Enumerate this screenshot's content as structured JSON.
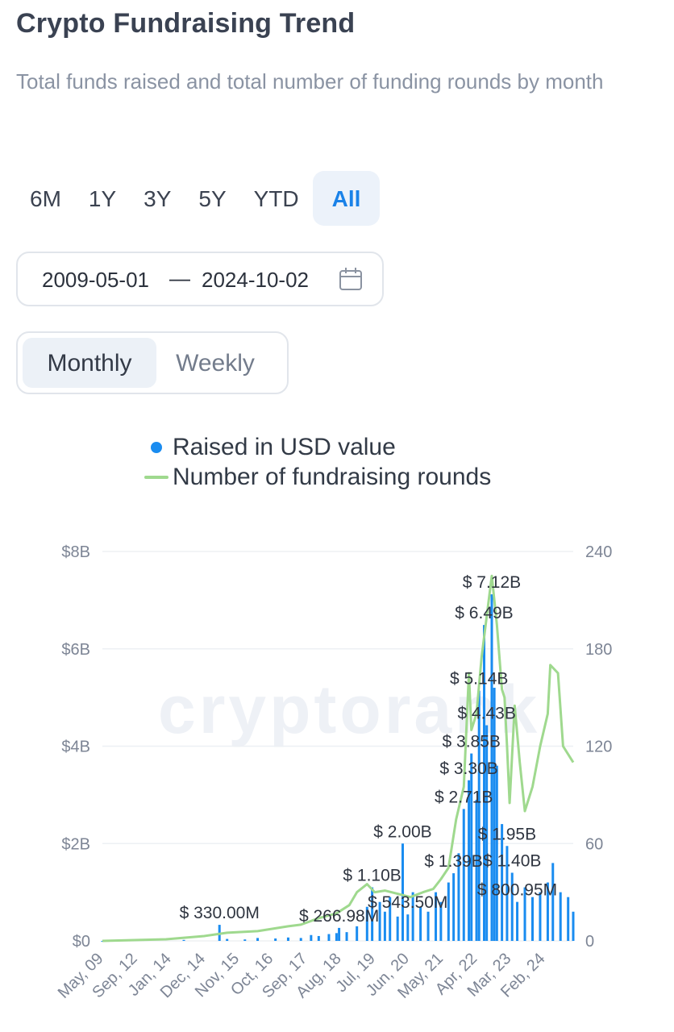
{
  "header": {
    "title": "Crypto Fundraising Trend",
    "subtitle": "Total funds raised and total number of funding rounds by month"
  },
  "range_buttons": [
    {
      "label": "6M",
      "active": false
    },
    {
      "label": "1Y",
      "active": false
    },
    {
      "label": "3Y",
      "active": false
    },
    {
      "label": "5Y",
      "active": false
    },
    {
      "label": "YTD",
      "active": false
    },
    {
      "label": "All",
      "active": true
    }
  ],
  "date_range": {
    "start": "2009-05-01",
    "separator": "—",
    "end": "2024-10-02",
    "icon": "calendar-icon"
  },
  "frequency": {
    "monthly": "Monthly",
    "weekly": "Weekly",
    "selected": "Monthly"
  },
  "watermark": "cryptorank",
  "colors": {
    "accent": "#1a82e8",
    "bars": "#1a8cf0",
    "line": "#9fd98e",
    "grid": "#edf0f4",
    "axis_text": "#7d8595"
  },
  "chart_data": {
    "type": "bar",
    "legend": [
      "Raised in USD value",
      "Number of fundraising rounds"
    ],
    "x_range": [
      "2009-05",
      "2024-10"
    ],
    "x_tick_labels": [
      "May, 09",
      "Sep, 12",
      "Jan, 14",
      "Dec, 14",
      "Nov, 15",
      "Oct, 16",
      "Sep, 17",
      "Aug, 18",
      "Jul, 19",
      "Jun, 20",
      "May, 21",
      "Apr, 22",
      "Mar, 23",
      "Feb, 24"
    ],
    "y_left": {
      "ticks": [
        "$0",
        "$2B",
        "$4B",
        "$6B",
        "$8B"
      ],
      "range": [
        0,
        8000000000
      ]
    },
    "y_right": {
      "ticks": [
        "0",
        "60",
        "120",
        "180",
        "240"
      ],
      "range": [
        0,
        240
      ]
    },
    "series": [
      {
        "name": "Raised in USD value",
        "kind": "bar",
        "points": [
          [
            "2009-05",
            0
          ],
          [
            "2012-01",
            20000000
          ],
          [
            "2013-03",
            330000000
          ],
          [
            "2013-06",
            40000000
          ],
          [
            "2014-01",
            30000000
          ],
          [
            "2014-06",
            60000000
          ],
          [
            "2015-01",
            50000000
          ],
          [
            "2015-06",
            70000000
          ],
          [
            "2015-11",
            60000000
          ],
          [
            "2016-03",
            120000000
          ],
          [
            "2016-06",
            100000000
          ],
          [
            "2016-10",
            140000000
          ],
          [
            "2017-01",
            160000000
          ],
          [
            "2017-02",
            266980000
          ],
          [
            "2017-05",
            180000000
          ],
          [
            "2017-09",
            300000000
          ],
          [
            "2018-01",
            700000000
          ],
          [
            "2018-03",
            1100000000
          ],
          [
            "2018-06",
            800000000
          ],
          [
            "2018-08",
            600000000
          ],
          [
            "2018-10",
            900000000
          ],
          [
            "2019-01",
            500000000
          ],
          [
            "2019-03",
            2000000000
          ],
          [
            "2019-05",
            543500000
          ],
          [
            "2019-07",
            1000000000
          ],
          [
            "2019-10",
            700000000
          ],
          [
            "2020-01",
            600000000
          ],
          [
            "2020-04",
            1000000000
          ],
          [
            "2020-06",
            800000000
          ],
          [
            "2020-09",
            1200000000
          ],
          [
            "2020-11",
            1390000000
          ],
          [
            "2021-01",
            1800000000
          ],
          [
            "2021-03",
            2710000000
          ],
          [
            "2021-05",
            3300000000
          ],
          [
            "2021-06",
            3850000000
          ],
          [
            "2021-08",
            2900000000
          ],
          [
            "2021-09",
            5140000000
          ],
          [
            "2021-11",
            6490000000
          ],
          [
            "2021-12",
            4430000000
          ],
          [
            "2022-02",
            7120000000
          ],
          [
            "2022-03",
            5200000000
          ],
          [
            "2022-04",
            3600000000
          ],
          [
            "2022-06",
            2400000000
          ],
          [
            "2022-08",
            1950000000
          ],
          [
            "2022-10",
            1400000000
          ],
          [
            "2022-12",
            800950000
          ],
          [
            "2023-03",
            1100000000
          ],
          [
            "2023-06",
            900000000
          ],
          [
            "2023-09",
            1000000000
          ],
          [
            "2023-12",
            1200000000
          ],
          [
            "2024-02",
            1600000000
          ],
          [
            "2024-05",
            1000000000
          ],
          [
            "2024-08",
            900000000
          ],
          [
            "2024-10",
            600000000
          ]
        ]
      },
      {
        "name": "Number of fundraising rounds",
        "kind": "line",
        "points": [
          [
            "2009-05",
            0
          ],
          [
            "2011-06",
            1
          ],
          [
            "2012-09",
            3
          ],
          [
            "2013-06",
            5
          ],
          [
            "2014-06",
            6
          ],
          [
            "2015-06",
            9
          ],
          [
            "2015-11",
            10
          ],
          [
            "2016-06",
            14
          ],
          [
            "2017-01",
            17
          ],
          [
            "2017-06",
            22
          ],
          [
            "2017-09",
            30
          ],
          [
            "2018-01",
            35
          ],
          [
            "2018-04",
            30
          ],
          [
            "2018-08",
            31
          ],
          [
            "2019-01",
            29
          ],
          [
            "2019-06",
            27
          ],
          [
            "2019-11",
            30
          ],
          [
            "2020-03",
            32
          ],
          [
            "2020-06",
            38
          ],
          [
            "2020-09",
            45
          ],
          [
            "2020-12",
            75
          ],
          [
            "2021-03",
            95
          ],
          [
            "2021-05",
            165
          ],
          [
            "2021-06",
            130
          ],
          [
            "2021-08",
            140
          ],
          [
            "2021-10",
            175
          ],
          [
            "2021-12",
            200
          ],
          [
            "2022-02",
            225
          ],
          [
            "2022-04",
            195
          ],
          [
            "2022-06",
            155
          ],
          [
            "2022-07",
            150
          ],
          [
            "2022-08",
            120
          ],
          [
            "2022-09",
            85
          ],
          [
            "2022-11",
            145
          ],
          [
            "2023-01",
            110
          ],
          [
            "2023-03",
            80
          ],
          [
            "2023-06",
            95
          ],
          [
            "2023-09",
            120
          ],
          [
            "2023-12",
            140
          ],
          [
            "2024-01",
            170
          ],
          [
            "2024-04",
            165
          ],
          [
            "2024-06",
            120
          ],
          [
            "2024-10",
            110
          ]
        ]
      }
    ],
    "annotations": [
      {
        "label": "$ 7.12B",
        "x": "2022-02",
        "y": 7120000000
      },
      {
        "label": "$ 6.49B",
        "x": "2021-11",
        "y": 6490000000
      },
      {
        "label": "$ 5.14B",
        "x": "2021-09",
        "y": 5140000000
      },
      {
        "label": "$ 4.43B",
        "x": "2021-12",
        "y": 4430000000
      },
      {
        "label": "$ 3.85B",
        "x": "2021-06",
        "y": 3850000000
      },
      {
        "label": "$ 3.30B",
        "x": "2021-05",
        "y": 3300000000
      },
      {
        "label": "$ 2.71B",
        "x": "2021-03",
        "y": 2710000000
      },
      {
        "label": "$ 2.00B",
        "x": "2019-03",
        "y": 2000000000
      },
      {
        "label": "$ 1.95B",
        "x": "2022-08",
        "y": 1950000000
      },
      {
        "label": "$ 1.39B",
        "x": "2020-11",
        "y": 1390000000
      },
      {
        "label": "$ 1.40B",
        "x": "2022-10",
        "y": 1400000000
      },
      {
        "label": "$ 1.10B",
        "x": "2018-03",
        "y": 1100000000
      },
      {
        "label": "$ 800.95M",
        "x": "2022-12",
        "y": 800950000
      },
      {
        "label": "$ 543.50M",
        "x": "2019-05",
        "y": 543500000
      },
      {
        "label": "$ 330.00M",
        "x": "2013-03",
        "y": 330000000
      },
      {
        "label": "$ 266.98M",
        "x": "2017-02",
        "y": 266980000
      }
    ],
    "grid": true,
    "legend_position": "top-center"
  }
}
